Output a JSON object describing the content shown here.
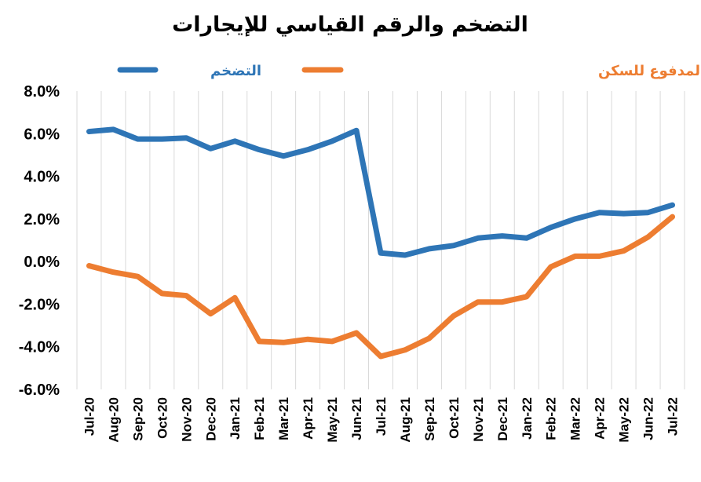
{
  "chart_data": {
    "type": "line",
    "title": "التضخم والرقم القياسي للإيجارات",
    "xlabel": "",
    "ylabel": "",
    "ylim": [
      -6.0,
      8.0
    ],
    "ytick_step": 2.0,
    "yticks": [
      "8.0%",
      "6.0%",
      "4.0%",
      "2.0%",
      "0.0%",
      "-2.0%",
      "-4.0%",
      "-6.0%"
    ],
    "grid": "vertical",
    "legend_position": "top",
    "categories": [
      "Jul-20",
      "Aug-20",
      "Sep-20",
      "Oct-20",
      "Nov-20",
      "Dec-20",
      "Jan-21",
      "Feb-21",
      "Mar-21",
      "Apr-21",
      "May-21",
      "Jun-21",
      "Jul-21",
      "Aug-21",
      "Sep-21",
      "Oct-21",
      "Nov-21",
      "Dec-21",
      "Jan-22",
      "Feb-22",
      "Mar-22",
      "Apr-22",
      "May-22",
      "Jun-22",
      "Jul-22"
    ],
    "series": [
      {
        "name": "التضخم",
        "color": "#2e75b6",
        "values": [
          6.1,
          6.2,
          5.75,
          5.75,
          5.8,
          5.3,
          5.65,
          5.25,
          4.95,
          5.25,
          5.65,
          6.15,
          0.4,
          0.3,
          0.6,
          0.75,
          1.1,
          1.2,
          1.1,
          1.6,
          2.0,
          2.3,
          2.25,
          2.3,
          2.65
        ]
      },
      {
        "name": "الرقم القياسي للإيجار المدفوع للسكن",
        "color": "#ed7d31",
        "values": [
          -0.2,
          -0.5,
          -0.7,
          -1.5,
          -1.6,
          -2.45,
          -1.7,
          -3.75,
          -3.8,
          -3.65,
          -3.75,
          -3.35,
          -4.45,
          -4.15,
          -3.6,
          -2.55,
          -1.9,
          -1.9,
          -1.65,
          -0.25,
          0.25,
          0.25,
          0.5,
          1.15,
          2.1
        ]
      }
    ]
  }
}
